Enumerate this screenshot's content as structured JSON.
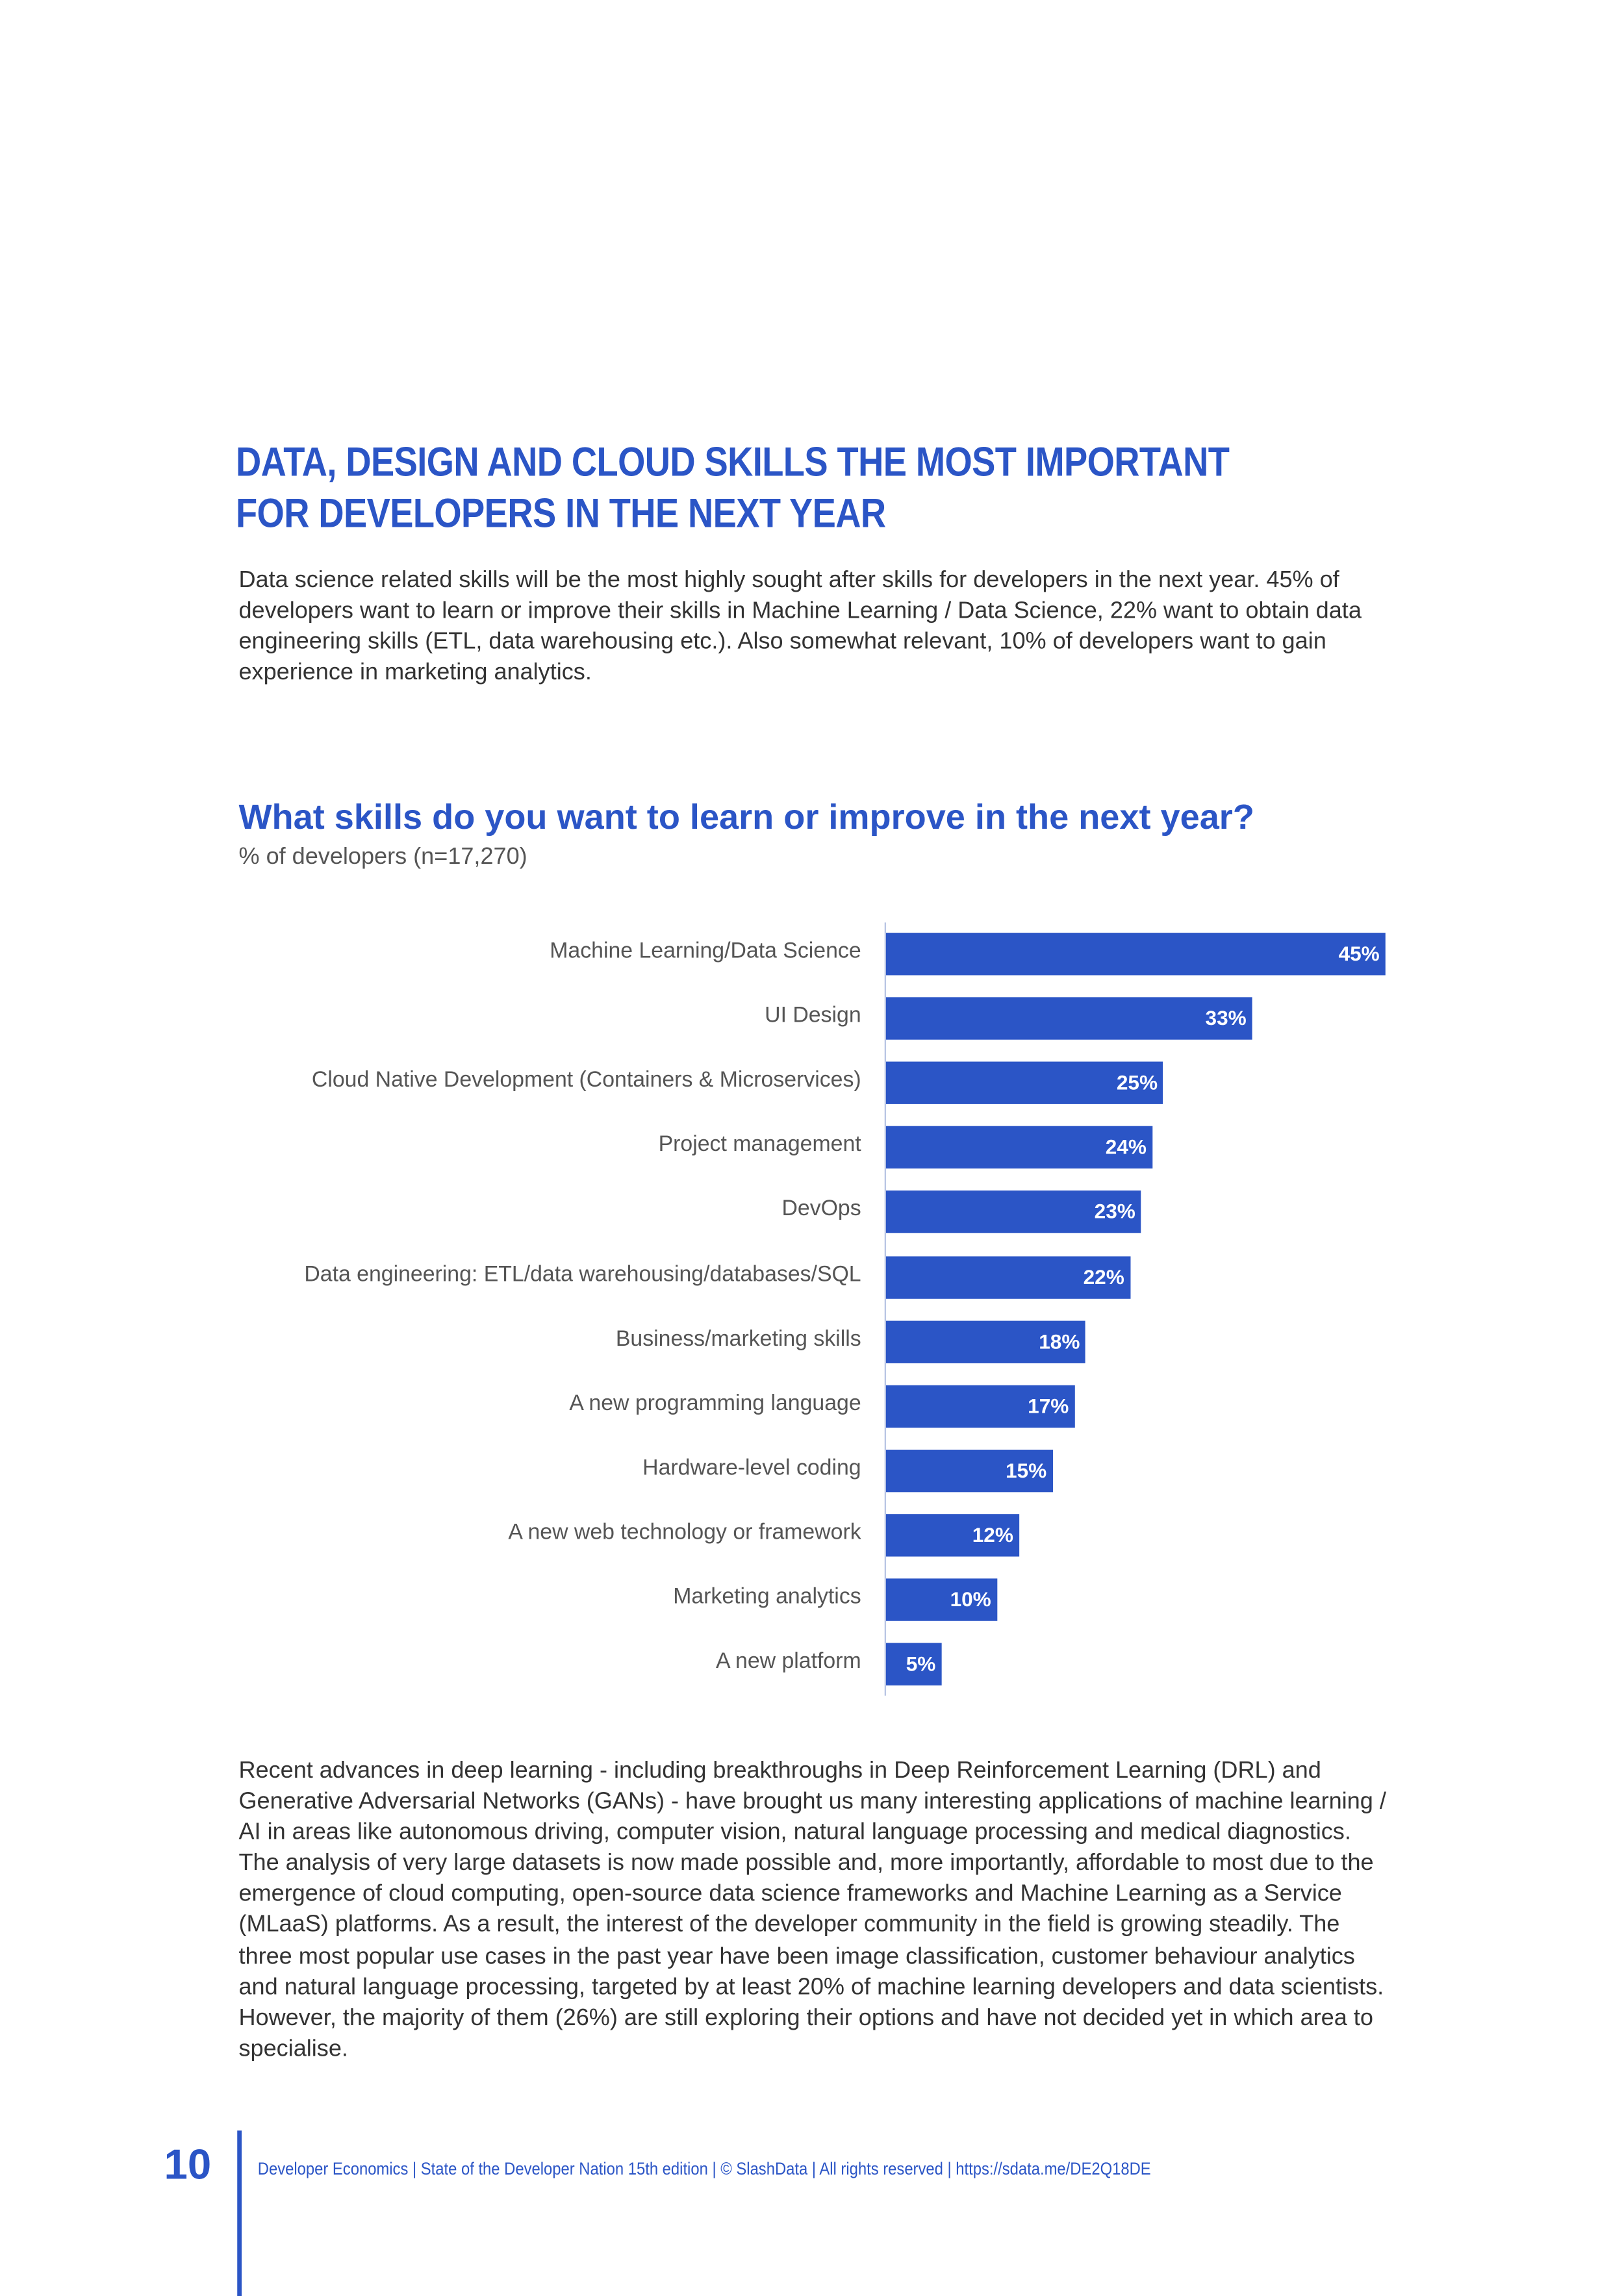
{
  "heading": {
    "line1": "DATA, DESIGN AND CLOUD SKILLS THE MOST IMPORTANT",
    "line2": "FOR DEVELOPERS IN THE NEXT YEAR"
  },
  "intro": "Data science related skills will be the most highly sought after skills for developers in the next year. 45% of developers want to learn or improve their skills in Machine Learning / Data Science, 22% want to obtain data engineering skills (ETL, data warehousing etc.). Also somewhat relevant, 10% of developers want to gain experience in marketing analytics.",
  "chart_data": {
    "type": "bar",
    "orientation": "horizontal",
    "title": "What skills do you want to learn or improve in the next year?",
    "subtitle": "% of developers (n=17,270)",
    "categories": [
      "Machine Learning/Data Science",
      "UI Design",
      "Cloud Native Development (Containers & Microservices)",
      "Project management",
      "DevOps",
      "Data engineering: ETL/data warehousing/databases/SQL",
      "Business/marketing skills",
      "A new programming language",
      "Hardware-level coding",
      "A new web technology or framework",
      "Marketing analytics",
      "A new platform"
    ],
    "values": [
      45,
      33,
      25,
      24,
      23,
      22,
      18,
      17,
      15,
      12,
      10,
      5
    ],
    "value_labels": [
      "45%",
      "33%",
      "25%",
      "24%",
      "23%",
      "22%",
      "18%",
      "17%",
      "15%",
      "12%",
      "10%",
      "5%"
    ],
    "color": "#2b55c6",
    "xlim": [
      0,
      45
    ]
  },
  "body": "Recent advances in deep learning - including breakthroughs in Deep Reinforcement Learning (DRL) and Generative Adversarial Networks (GANs) - have brought us many interesting applications of machine learning / AI in areas like autonomous driving, computer vision, natural language processing and medical diagnostics. The analysis of very large datasets is now made possible and, more importantly, affordable to most due to the emergence of cloud computing, open-source data science frameworks and Machine Learning as a Service (MLaaS) platforms. As a result, the interest of the developer community in the field is growing steadily. The three most popular use cases in the past year have been image classification, customer behaviour analytics and natural language processing, targeted by at least 20% of machine learning developers and data scientists. However, the majority of them (26%) are still exploring their options and have not decided yet in which area to specialise.",
  "footer": {
    "page_number": "10",
    "text": "Developer Economics | State of the Developer Nation 15th edition | © SlashData | All rights reserved | https://sdata.me/DE2Q18DE"
  }
}
